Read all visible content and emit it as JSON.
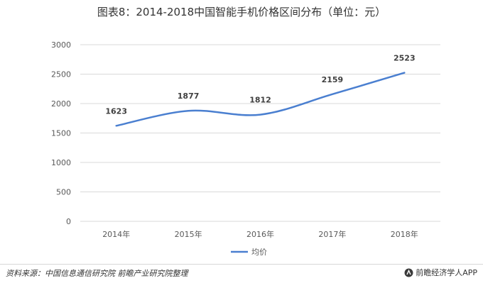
{
  "title": "图表8：2014-2018中国智能手机价格区间分布（单位：元）",
  "source": "资料来源：中国信息通信研究院 前瞻产业研究院整理",
  "brand": "前瞻经济学人APP",
  "colors": {
    "line": "#4a7fd0",
    "grid": "#d9d9d9",
    "axis_text": "#595959"
  },
  "chart_data": {
    "type": "line",
    "categories": [
      "2014年",
      "2015年",
      "2016年",
      "2017年",
      "2018年"
    ],
    "series": [
      {
        "name": "均价",
        "values": [
          1623,
          1877,
          1812,
          2159,
          2523
        ]
      }
    ],
    "ylim": [
      0,
      3000
    ],
    "yticks": [
      0,
      500,
      1000,
      1500,
      2000,
      2500,
      3000
    ],
    "data_labels": [
      "1623",
      "1877",
      "1812",
      "2159",
      "2523"
    ],
    "grid": true,
    "legend": "bottom",
    "xlabel": "",
    "ylabel": ""
  }
}
